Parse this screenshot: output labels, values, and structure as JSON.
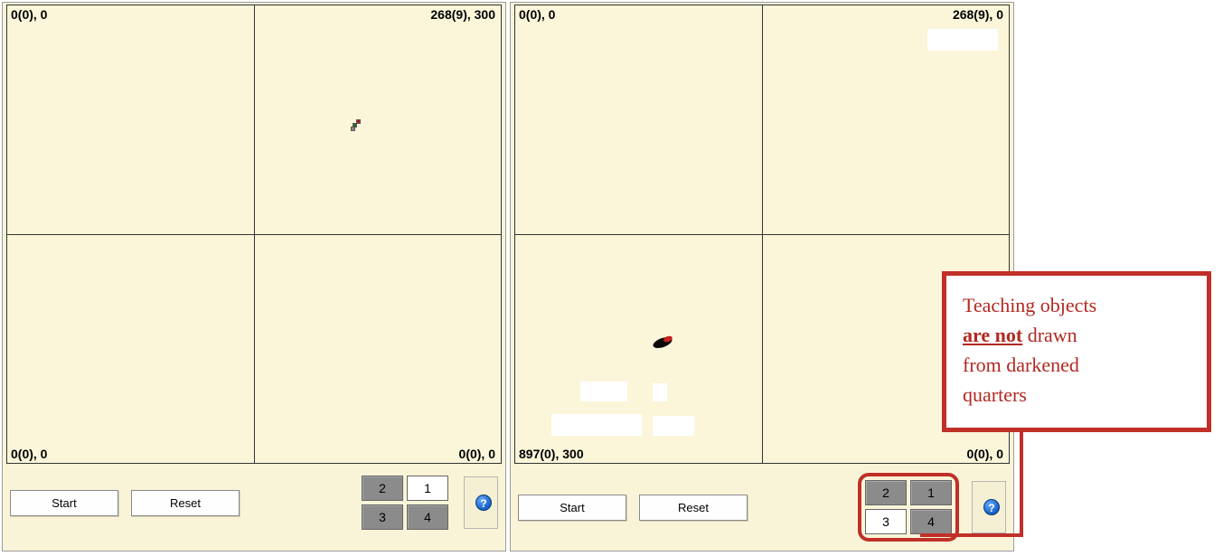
{
  "panels": [
    {
      "id": "left",
      "coords": {
        "tl": "0(0), 0",
        "tr": "268(9), 300",
        "bl": "0(0), 0",
        "br": "0(0), 0"
      },
      "bg": "#fbf6da",
      "grid_line_color": "#333333",
      "buttons": {
        "start": "Start",
        "reset": "Reset"
      },
      "quadrants": [
        {
          "n": "2",
          "dark": true
        },
        {
          "n": "1",
          "dark": false
        },
        {
          "n": "3",
          "dark": true
        },
        {
          "n": "4",
          "dark": true
        }
      ],
      "quad_outline": false
    },
    {
      "id": "right",
      "coords": {
        "tl": "0(0), 0",
        "tr": "268(9), 0",
        "bl": "897(0), 300",
        "br": "0(0), 0"
      },
      "bg": "#fbf6da",
      "grid_line_color": "#333333",
      "buttons": {
        "start": "Start",
        "reset": "Reset"
      },
      "quadrants": [
        {
          "n": "2",
          "dark": true
        },
        {
          "n": "1",
          "dark": true
        },
        {
          "n": "3",
          "dark": false
        },
        {
          "n": "4",
          "dark": true
        }
      ],
      "quad_outline": true
    }
  ],
  "help_glyph": "?",
  "callout": {
    "line1": "Teaching objects",
    "emph": "are not",
    "line2_rest": " drawn",
    "line3": "from darkened",
    "line4": "quarters",
    "border_color": "#c03028",
    "text_color": "#b22820"
  },
  "colors": {
    "panel_bg": "#f9f4d8",
    "grid_bg": "#fbf6da",
    "quad_dark": "#8b8b8b",
    "quad_light": "#ffffff",
    "outline": "#c03028"
  }
}
